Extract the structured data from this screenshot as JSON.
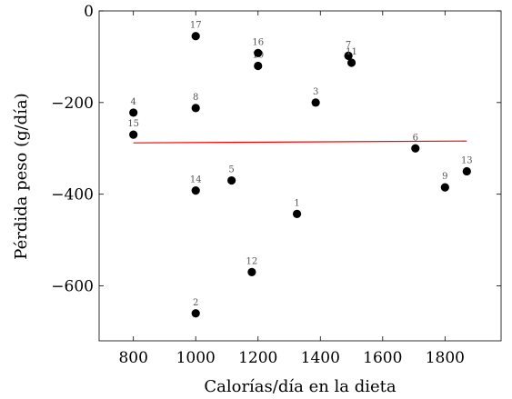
{
  "chart_data": {
    "type": "scatter",
    "title": "",
    "xlabel": "Calorías/día en la dieta",
    "ylabel": "Pérdida peso (g/día)",
    "xlim": [
      690,
      1980
    ],
    "ylim": [
      -720,
      0
    ],
    "xticks": [
      800,
      1000,
      1200,
      1400,
      1600,
      1800
    ],
    "yticks": [
      0,
      -200,
      -400,
      -600
    ],
    "ytick_labels": [
      "0",
      "−200",
      "−400",
      "−600"
    ],
    "grid": false,
    "legend": "none",
    "points": [
      {
        "label": "1",
        "x": 1325,
        "y": -443
      },
      {
        "label": "2",
        "x": 1000,
        "y": -660
      },
      {
        "label": "3",
        "x": 1385,
        "y": -200
      },
      {
        "label": "4",
        "x": 800,
        "y": -222
      },
      {
        "label": "5",
        "x": 1115,
        "y": -370
      },
      {
        "label": "6",
        "x": 1705,
        "y": -300
      },
      {
        "label": "7",
        "x": 1490,
        "y": -98
      },
      {
        "label": "11",
        "x": 1500,
        "y": -113
      },
      {
        "label": "8",
        "x": 1000,
        "y": -212
      },
      {
        "label": "9",
        "x": 1800,
        "y": -385
      },
      {
        "label": "10",
        "x": 1200,
        "y": -120
      },
      {
        "label": "12",
        "x": 1180,
        "y": -570
      },
      {
        "label": "13",
        "x": 1870,
        "y": -350
      },
      {
        "label": "14",
        "x": 1000,
        "y": -392
      },
      {
        "label": "15",
        "x": 800,
        "y": -270
      },
      {
        "label": "16",
        "x": 1200,
        "y": -92
      },
      {
        "label": "17",
        "x": 1000,
        "y": -55
      }
    ],
    "trend_line": {
      "x": [
        800,
        1870
      ],
      "y": [
        -288,
        -284
      ],
      "color": "#ff0000"
    },
    "point_color": "#000000"
  }
}
